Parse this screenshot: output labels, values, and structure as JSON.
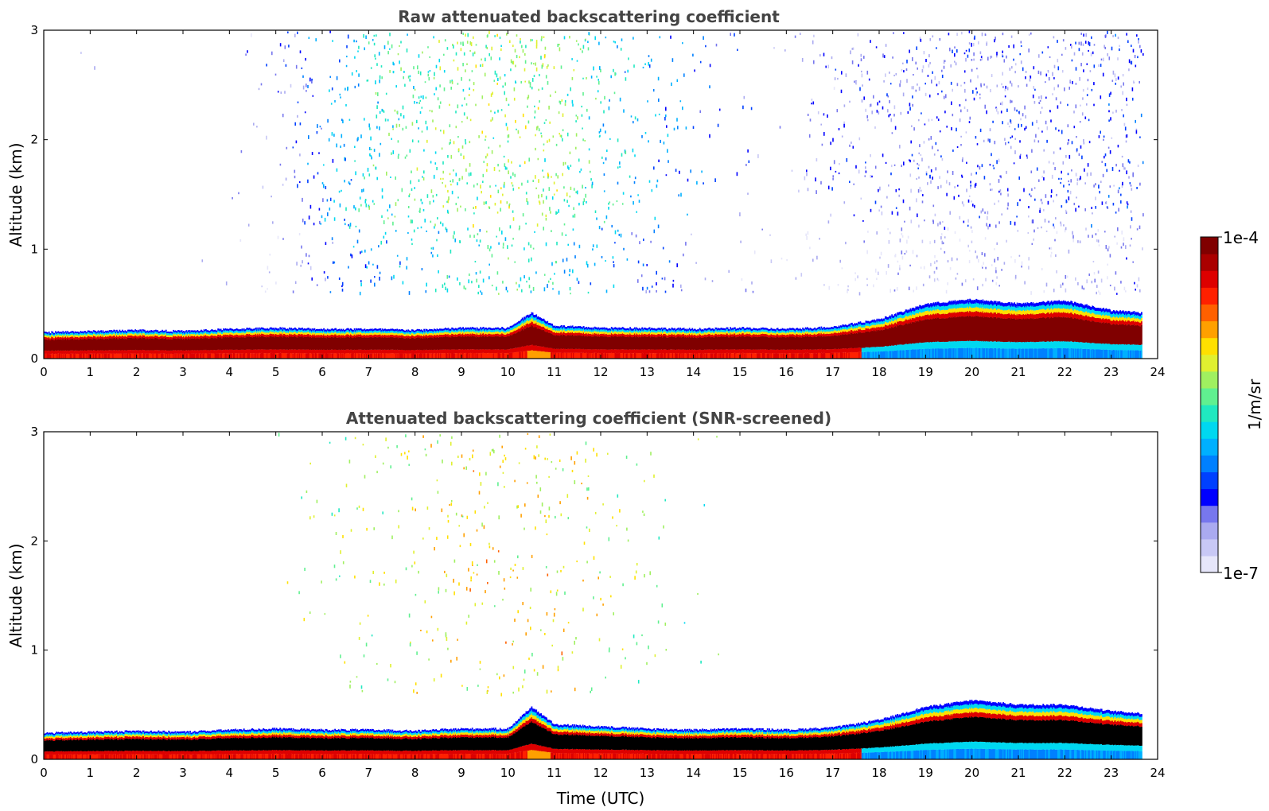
{
  "chart_data": [
    {
      "type": "heatmap",
      "title": "Raw attenuated backscattering coefficient",
      "xlabel": "",
      "ylabel": "Altitude (km)",
      "xlim": [
        0,
        24
      ],
      "ylim": [
        0,
        3
      ],
      "xticks": [
        "0",
        "1",
        "2",
        "3",
        "4",
        "5",
        "6",
        "7",
        "8",
        "9",
        "10",
        "11",
        "12",
        "13",
        "14",
        "15",
        "16",
        "17",
        "18",
        "19",
        "20",
        "21",
        "22",
        "23",
        "24"
      ],
      "yticks": [
        "0",
        "1",
        "2",
        "3"
      ],
      "data_end_time": 23.65,
      "layer_top_km": [
        [
          0,
          0.24
        ],
        [
          1,
          0.25
        ],
        [
          2,
          0.26
        ],
        [
          3,
          0.25
        ],
        [
          4,
          0.27
        ],
        [
          5,
          0.28
        ],
        [
          6,
          0.27
        ],
        [
          7,
          0.27
        ],
        [
          8,
          0.26
        ],
        [
          9,
          0.28
        ],
        [
          10,
          0.28
        ],
        [
          10.5,
          0.42
        ],
        [
          11,
          0.3
        ],
        [
          12,
          0.28
        ],
        [
          13,
          0.28
        ],
        [
          14,
          0.27
        ],
        [
          15,
          0.28
        ],
        [
          16,
          0.27
        ],
        [
          17,
          0.29
        ],
        [
          18,
          0.36
        ],
        [
          19,
          0.5
        ],
        [
          20,
          0.54
        ],
        [
          21,
          0.5
        ],
        [
          22,
          0.53
        ],
        [
          23,
          0.44
        ],
        [
          23.65,
          0.42
        ]
      ],
      "noise_density": [
        [
          0,
          0.1
        ],
        [
          2,
          0.12
        ],
        [
          4,
          0.12
        ],
        [
          5.1,
          0.55
        ],
        [
          7,
          0.75
        ],
        [
          9,
          0.8
        ],
        [
          11,
          0.8
        ],
        [
          13,
          0.55
        ],
        [
          15,
          0.25
        ],
        [
          16,
          0.3
        ],
        [
          17,
          0.55
        ],
        [
          18,
          0.7
        ],
        [
          20,
          0.8
        ],
        [
          22,
          0.8
        ],
        [
          23.65,
          0.8
        ]
      ],
      "noise_color": [
        [
          0,
          0.12
        ],
        [
          5,
          0.15
        ],
        [
          7,
          0.45
        ],
        [
          9,
          0.55
        ],
        [
          11,
          0.55
        ],
        [
          13,
          0.35
        ],
        [
          16,
          0.15
        ],
        [
          23.65,
          0.2
        ]
      ]
    },
    {
      "type": "heatmap",
      "title": "Attenuated backscattering coefficient (SNR-screened)",
      "xlabel": "Time (UTC)",
      "ylabel": "Altitude (km)",
      "xlim": [
        0,
        24
      ],
      "ylim": [
        0,
        3
      ],
      "xticks": [
        "0",
        "1",
        "2",
        "3",
        "4",
        "5",
        "6",
        "7",
        "8",
        "9",
        "10",
        "11",
        "12",
        "13",
        "14",
        "15",
        "16",
        "17",
        "18",
        "19",
        "20",
        "21",
        "22",
        "23",
        "24"
      ],
      "yticks": [
        "0",
        "1",
        "2",
        "3"
      ],
      "data_end_time": 23.65,
      "layer_top_km": [
        [
          0,
          0.24
        ],
        [
          1,
          0.25
        ],
        [
          2,
          0.26
        ],
        [
          3,
          0.25
        ],
        [
          4,
          0.27
        ],
        [
          5,
          0.28
        ],
        [
          6,
          0.27
        ],
        [
          7,
          0.27
        ],
        [
          8,
          0.26
        ],
        [
          9,
          0.28
        ],
        [
          10,
          0.28
        ],
        [
          10.5,
          0.48
        ],
        [
          11,
          0.32
        ],
        [
          12,
          0.3
        ],
        [
          13,
          0.28
        ],
        [
          14,
          0.27
        ],
        [
          15,
          0.28
        ],
        [
          16,
          0.27
        ],
        [
          17,
          0.29
        ],
        [
          18,
          0.36
        ],
        [
          19,
          0.48
        ],
        [
          20,
          0.54
        ],
        [
          21,
          0.5
        ],
        [
          22,
          0.5
        ],
        [
          23,
          0.44
        ],
        [
          23.65,
          0.42
        ]
      ],
      "noise_density": [
        [
          0,
          0.0
        ],
        [
          4,
          0.0
        ],
        [
          5,
          0.12
        ],
        [
          7,
          0.4
        ],
        [
          9,
          0.5
        ],
        [
          11,
          0.5
        ],
        [
          13,
          0.35
        ],
        [
          15,
          0.08
        ],
        [
          16,
          0.02
        ],
        [
          18,
          0.02
        ],
        [
          23.65,
          0.02
        ]
      ],
      "noise_color": [
        [
          0,
          0.5
        ],
        [
          7,
          0.58
        ],
        [
          9,
          0.65
        ],
        [
          11,
          0.65
        ],
        [
          13,
          0.55
        ],
        [
          23.65,
          0.45
        ]
      ]
    }
  ],
  "colorbar": {
    "label": "1/m/sr",
    "max_label": "1e-4",
    "min_label": "1e-7",
    "colors": [
      "#e6e6fa",
      "#c8c8f5",
      "#aaaaf0",
      "#7777ee",
      "#0000ff",
      "#0040ff",
      "#0080ff",
      "#00b0ff",
      "#00d8f0",
      "#20e8c0",
      "#60f090",
      "#a0f060",
      "#e0f030",
      "#ffe000",
      "#ffa000",
      "#ff6000",
      "#ff2000",
      "#dd0000",
      "#aa0000",
      "#800000"
    ]
  }
}
